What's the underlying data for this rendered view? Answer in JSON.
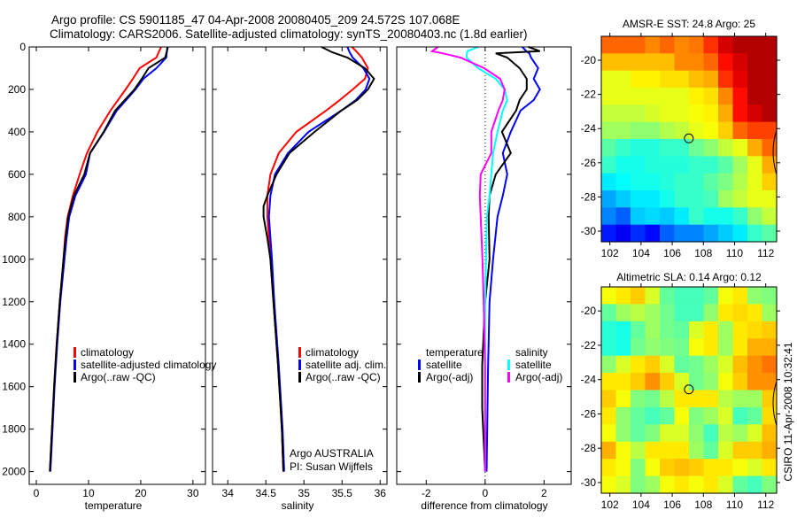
{
  "header": {
    "title_line1": "Argo profile: CS 5901185_47 04-Apr-2008 20080405_209 24.572S 107.068E",
    "title_line2": "Climatology: CARS2006. Satellite-adjusted climatology: synTS_20080403.nc (1.8d earlier)"
  },
  "colors": {
    "climatology": "#ff0000",
    "satellite": "#0000ff",
    "argo": "#000000",
    "sal_satellite": "#00ffff",
    "sal_argo": "#ff00ff"
  },
  "chart_data": [
    {
      "type": "line",
      "panel": "temperature",
      "xlabel": "temperature",
      "xlim": [
        -1.36,
        32.4
      ],
      "ylim": [
        0,
        2060
      ],
      "y_reversed": true,
      "xticks": [
        0,
        10,
        20,
        30
      ],
      "yticks": [
        0,
        200,
        400,
        600,
        800,
        1000,
        1200,
        1400,
        1600,
        1800,
        2000
      ],
      "legend": [
        "climatology",
        "satellite-adjusted climatology",
        "Argo(..raw -QC)"
      ],
      "depth": [
        0,
        50,
        100,
        150,
        200,
        300,
        400,
        500,
        600,
        700,
        800,
        900,
        1000,
        1200,
        1400,
        1600,
        1800,
        2000
      ],
      "series": [
        {
          "name": "climatology",
          "color": "#ff0000",
          "values": [
            23.9,
            23.0,
            19.8,
            18.5,
            17.1,
            14.2,
            11.7,
            9.7,
            8.3,
            7.0,
            6.0,
            5.5,
            5.2,
            4.5,
            3.9,
            3.4,
            3.0,
            2.6
          ]
        },
        {
          "name": "satellite-adjusted climatology",
          "color": "#0000ff",
          "values": [
            25.1,
            24.9,
            23.0,
            20.5,
            19.0,
            15.4,
            13.0,
            10.3,
            9.5,
            7.5,
            6.3,
            5.8,
            5.4,
            4.6,
            4.0,
            3.5,
            3.1,
            2.7
          ]
        },
        {
          "name": "Argo(..raw -QC)",
          "color": "#000000",
          "values": [
            25.2,
            24.7,
            21.5,
            20.2,
            18.8,
            15.1,
            12.9,
            10.3,
            9.2,
            7.2,
            6.1,
            5.6,
            5.2,
            4.5,
            3.9,
            3.4,
            3.0,
            2.6
          ]
        }
      ]
    },
    {
      "type": "line",
      "panel": "salinity",
      "xlabel": "salinity",
      "xlim": [
        33.8,
        36.09
      ],
      "ylim": [
        0,
        2060
      ],
      "y_reversed": true,
      "xticks": [
        34,
        34.5,
        35,
        35.5,
        36
      ],
      "xtick_labels": [
        "34",
        "34.5",
        "35",
        "35.5",
        "36"
      ],
      "legend": [
        "climatology",
        "satellite adj. clim.",
        "Argo(..raw -QC)"
      ],
      "annotation": [
        "Argo AUSTRALIA",
        "PI: Susan Wijffels"
      ],
      "depth": [
        0,
        25,
        50,
        100,
        150,
        200,
        250,
        300,
        400,
        500,
        600,
        700,
        750,
        800,
        900,
        1000,
        1200,
        1500,
        1800,
        2000
      ],
      "series": [
        {
          "name": "climatology",
          "color": "#ff0000",
          "values": [
            35.63,
            35.7,
            35.76,
            35.84,
            35.8,
            35.64,
            35.47,
            35.29,
            34.9,
            34.67,
            34.56,
            34.52,
            34.52,
            34.52,
            34.54,
            34.56,
            34.6,
            34.66,
            34.71,
            34.73
          ]
        },
        {
          "name": "satellite adj. clim.",
          "color": "#0000ff",
          "values": [
            35.57,
            35.6,
            35.64,
            35.78,
            35.86,
            35.81,
            35.68,
            35.49,
            35.06,
            34.79,
            34.62,
            34.56,
            34.55,
            34.54,
            34.56,
            34.58,
            34.61,
            34.67,
            34.72,
            34.74
          ]
        },
        {
          "name": "Argo(..raw -QC)",
          "color": "#000000",
          "values": [
            35.23,
            35.37,
            35.57,
            35.8,
            35.92,
            35.84,
            35.7,
            35.49,
            35.14,
            34.81,
            34.64,
            34.52,
            34.47,
            34.47,
            34.52,
            34.56,
            34.6,
            34.66,
            34.71,
            34.73
          ]
        }
      ]
    },
    {
      "type": "line",
      "panel": "difference",
      "xlabel": "difference from climatology",
      "xlim": [
        -3.0,
        2.92
      ],
      "ylim": [
        0,
        2060
      ],
      "y_reversed": true,
      "xticks": [
        -2,
        0,
        2
      ],
      "legend_groups": [
        {
          "title": "temperature",
          "items": [
            "satellite",
            "Argo(-adj)"
          ]
        },
        {
          "title": "salinity",
          "items": [
            "satellite",
            "Argo(-adj)"
          ]
        }
      ],
      "depth": [
        0,
        20,
        30,
        50,
        100,
        150,
        200,
        250,
        300,
        400,
        500,
        600,
        700,
        800,
        1000,
        1200,
        1500,
        1700,
        2000
      ],
      "series": [
        {
          "name": "temperature satellite",
          "color": "#0000ff",
          "values": [
            1.26,
            1.4,
            1.5,
            1.56,
            1.8,
            1.65,
            1.86,
            1.65,
            1.2,
            0.87,
            0.6,
            0.75,
            0.6,
            0.42,
            0.27,
            0.15,
            0.1,
            0.08,
            0.05
          ]
        },
        {
          "name": "temperature Argo(-adj)",
          "color": "#000000",
          "values": [
            1.47,
            1.86,
            0.36,
            0.75,
            1.17,
            1.41,
            1.41,
            1.17,
            1.05,
            0.57,
            0.87,
            0.36,
            0.15,
            0.12,
            0.15,
            0.0,
            -0.1,
            -0.1,
            0.0
          ]
        },
        {
          "name": "salinity satellite",
          "color": "#00ffff",
          "values": [
            -0.24,
            -0.6,
            -0.62,
            -0.63,
            -0.24,
            0.36,
            0.66,
            0.75,
            0.6,
            0.42,
            0.27,
            0.21,
            0.15,
            0.06,
            0.03,
            0.0,
            0.0,
            0.0,
            0.0
          ]
        },
        {
          "name": "salinity Argo(-adj)",
          "color": "#ff00ff",
          "values": [
            -1.6,
            -1.8,
            -1.44,
            -0.84,
            -0.03,
            0.51,
            0.66,
            0.6,
            0.45,
            0.21,
            0.21,
            -0.15,
            -0.18,
            -0.15,
            -0.09,
            -0.05,
            0.0,
            0.0,
            0.0
          ]
        }
      ]
    },
    {
      "type": "heatmap",
      "panel": "sst-map",
      "title": "AMSR-E SST: 24.8 Argo: 25",
      "xlim": [
        101.45,
        112.7
      ],
      "ylim": [
        -30.62,
        -18.6
      ],
      "xticks": [
        102,
        104,
        106,
        108,
        110,
        112
      ],
      "yticks": [
        -20,
        -22,
        -24,
        -26,
        -28,
        -30
      ],
      "clim": [
        22,
        27
      ],
      "argo_position": {
        "lon": 107.068,
        "lat": -24.572
      },
      "grid_rows_north_to_south": [
        [
          26,
          26,
          26,
          25.8,
          26,
          25.8,
          25.9,
          26.3,
          26.8,
          27,
          27,
          27
        ],
        [
          25.5,
          25.5,
          25.5,
          25.5,
          25.5,
          25.8,
          25.8,
          26,
          26.5,
          26.8,
          27,
          27
        ],
        [
          25,
          25,
          25.2,
          25.2,
          25.3,
          25.3,
          25.5,
          25.6,
          26.3,
          26.7,
          27,
          27
        ],
        [
          25,
          25,
          25,
          25,
          25,
          25,
          25.2,
          25.3,
          25.8,
          26.5,
          27,
          27
        ],
        [
          24.8,
          24.8,
          24.8,
          24.9,
          25,
          25,
          25.1,
          25.2,
          25.6,
          26.5,
          26.8,
          27
        ],
        [
          24.6,
          24.6,
          24.5,
          24.5,
          24.7,
          24.8,
          25,
          25.1,
          25.4,
          26,
          26.2,
          26.2
        ],
        [
          24.2,
          24,
          23.9,
          23.9,
          24,
          24,
          24.3,
          24.5,
          24.8,
          25,
          25.6,
          26
        ],
        [
          24,
          23.8,
          23.8,
          23.9,
          23.9,
          23.9,
          24,
          24,
          24.2,
          24.6,
          25,
          25.6
        ],
        [
          23.6,
          23.7,
          23.8,
          23.8,
          23.9,
          24,
          24,
          24.2,
          24.4,
          24.7,
          25,
          25.4
        ],
        [
          23.2,
          23.4,
          23.6,
          23.6,
          23.8,
          24,
          24,
          24.1,
          24.6,
          24.8,
          25,
          25
        ],
        [
          23,
          22.8,
          23.4,
          23.5,
          23.4,
          23.6,
          24,
          23.8,
          23.8,
          24,
          24.5,
          24.8
        ],
        [
          22.4,
          22.2,
          22.5,
          22.3,
          22.8,
          23,
          23,
          23.2,
          23.4,
          23.6,
          24,
          24.2
        ]
      ]
    },
    {
      "type": "heatmap",
      "panel": "sla-map",
      "title": "Altimetric SLA: 0.14 Argo: 0.12",
      "xlim": [
        101.45,
        112.7
      ],
      "ylim": [
        -30.62,
        -18.6
      ],
      "xticks": [
        102,
        104,
        106,
        108,
        110,
        112
      ],
      "yticks": [
        -20,
        -22,
        -24,
        -26,
        -28,
        -30
      ],
      "clim": [
        -0.25,
        0.35
      ],
      "argo_position": {
        "lon": 107.068,
        "lat": -24.572
      },
      "grid_rows_north_to_south": [
        [
          0.12,
          0.14,
          0.16,
          0.1,
          0.02,
          0.0,
          0.0,
          0.02,
          0.12,
          0.14,
          0.05,
          0.04
        ],
        [
          0.02,
          0.06,
          0.08,
          0.06,
          0.03,
          0.0,
          0.0,
          0.05,
          0.14,
          0.15,
          0.14,
          0.06
        ],
        [
          -0.02,
          -0.03,
          0.02,
          0.06,
          0.03,
          0.02,
          0.1,
          0.14,
          0.06,
          0.14,
          0.15,
          0.16
        ],
        [
          -0.02,
          -0.03,
          0.03,
          0.05,
          0.04,
          0.03,
          0.12,
          0.14,
          0.06,
          0.14,
          0.18,
          0.18
        ],
        [
          0.05,
          0.1,
          0.14,
          0.16,
          0.1,
          0.02,
          0.03,
          0.06,
          0.1,
          0.17,
          0.2,
          0.22
        ],
        [
          0.14,
          0.14,
          0.16,
          0.2,
          0.16,
          0.1,
          0.03,
          0.05,
          0.12,
          0.16,
          0.2,
          0.2
        ],
        [
          0.16,
          0.12,
          0.04,
          0.03,
          0.08,
          0.14,
          0.14,
          0.14,
          0.08,
          0.06,
          0.06,
          0.16
        ],
        [
          0.14,
          0.05,
          0.02,
          0.0,
          0.02,
          0.12,
          0.04,
          0.06,
          0.1,
          0.0,
          0.02,
          0.15
        ],
        [
          0.12,
          0.05,
          0.02,
          0.04,
          0.1,
          0.1,
          0.05,
          0.0,
          0.08,
          0.06,
          0.1,
          0.17
        ],
        [
          0.18,
          0.12,
          0.08,
          0.14,
          0.14,
          0.14,
          0.06,
          0.02,
          0.1,
          0.16,
          0.16,
          0.18
        ],
        [
          0.14,
          0.12,
          0.04,
          0.12,
          0.16,
          0.17,
          0.16,
          0.14,
          0.14,
          0.12,
          0.1,
          0.14
        ],
        [
          0.12,
          0.1,
          0.04,
          0.06,
          0.12,
          0.14,
          0.12,
          0.14,
          0.1,
          0.02,
          0.0,
          0.04
        ]
      ]
    }
  ],
  "footer": {
    "credit": "CSIRO 11-Apr-2008 10:32:41"
  }
}
